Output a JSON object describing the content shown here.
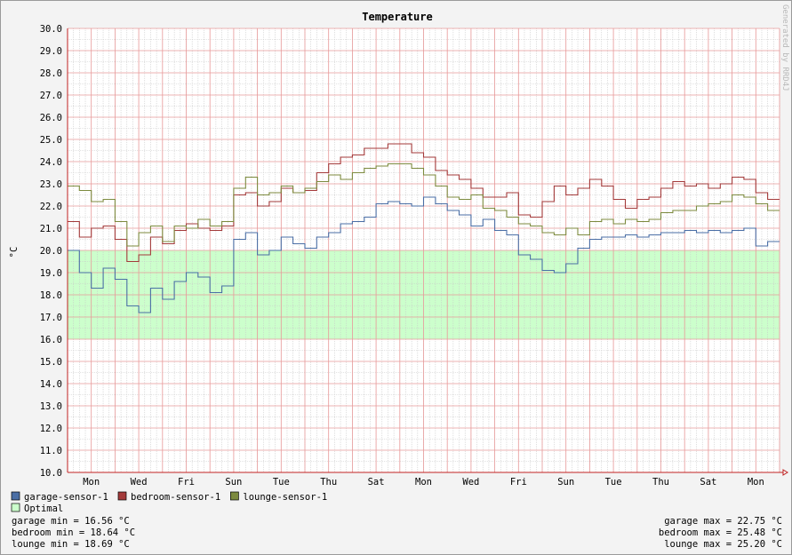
{
  "chart_data": {
    "type": "line",
    "title": "Temperature",
    "ylabel": "°C",
    "xlabel": "",
    "ylim": [
      10.0,
      30.0
    ],
    "y_ticks": [
      10.0,
      11.0,
      12.0,
      13.0,
      14.0,
      15.0,
      16.0,
      17.0,
      18.0,
      19.0,
      20.0,
      21.0,
      22.0,
      23.0,
      24.0,
      25.0,
      26.0,
      27.0,
      28.0,
      29.0,
      30.0
    ],
    "y_tick_labels": [
      "10.0",
      "11.0",
      "12.0",
      "13.0",
      "14.0",
      "15.0",
      "16.0",
      "17.0",
      "18.0",
      "19.0",
      "20.0",
      "21.0",
      "22.0",
      "23.0",
      "24.0",
      "25.0",
      "26.0",
      "27.0",
      "28.0",
      "29.0",
      "30.0"
    ],
    "xlim": [
      0,
      30
    ],
    "x_ticks": [
      1,
      3,
      5,
      7,
      9,
      11,
      13,
      15,
      17,
      19,
      21,
      23,
      25,
      27,
      29
    ],
    "x_tick_labels": [
      "Mon",
      "Wed",
      "Fri",
      "Sun",
      "Tue",
      "Thu",
      "Sat",
      "Mon",
      "Wed",
      "Fri",
      "Sun",
      "Tue",
      "Thu",
      "Sat",
      "Mon"
    ],
    "grid": true,
    "legend_placement": "bottom-left",
    "watermark": "Generated by RRD4J",
    "band": {
      "name": "Optimal",
      "from": 16.0,
      "to": 20.0,
      "color": "#ccffcc"
    },
    "series": [
      {
        "name": "garage-sensor-1",
        "color": "#4a6ea5",
        "points": [
          [
            0,
            20.0
          ],
          [
            0.5,
            19.0
          ],
          [
            1,
            18.3
          ],
          [
            1.5,
            19.2
          ],
          [
            2,
            18.7
          ],
          [
            2.5,
            17.5
          ],
          [
            3,
            17.2
          ],
          [
            3.5,
            18.3
          ],
          [
            4,
            17.8
          ],
          [
            4.5,
            18.6
          ],
          [
            5,
            19.0
          ],
          [
            5.5,
            18.8
          ],
          [
            6,
            18.1
          ],
          [
            6.5,
            18.4
          ],
          [
            7,
            20.5
          ],
          [
            7.5,
            20.8
          ],
          [
            8,
            19.8
          ],
          [
            8.5,
            20.0
          ],
          [
            9,
            20.6
          ],
          [
            9.5,
            20.3
          ],
          [
            10,
            20.1
          ],
          [
            10.5,
            20.6
          ],
          [
            11,
            20.8
          ],
          [
            11.5,
            21.2
          ],
          [
            12,
            21.3
          ],
          [
            12.5,
            21.5
          ],
          [
            13,
            22.1
          ],
          [
            13.5,
            22.2
          ],
          [
            14,
            22.1
          ],
          [
            14.5,
            22.0
          ],
          [
            15,
            22.4
          ],
          [
            15.5,
            22.1
          ],
          [
            16,
            21.8
          ],
          [
            16.5,
            21.6
          ],
          [
            17,
            21.1
          ],
          [
            17.5,
            21.4
          ],
          [
            18,
            20.9
          ],
          [
            18.5,
            20.7
          ],
          [
            19,
            19.8
          ],
          [
            19.5,
            19.6
          ],
          [
            20,
            19.1
          ],
          [
            20.5,
            19.0
          ],
          [
            21,
            19.4
          ],
          [
            21.5,
            20.1
          ],
          [
            22,
            20.5
          ],
          [
            22.5,
            20.6
          ],
          [
            23,
            20.6
          ],
          [
            23.5,
            20.7
          ],
          [
            24,
            20.6
          ],
          [
            24.5,
            20.7
          ],
          [
            25,
            20.8
          ],
          [
            25.5,
            20.8
          ],
          [
            26,
            20.9
          ],
          [
            26.5,
            20.8
          ],
          [
            27,
            20.9
          ],
          [
            27.5,
            20.8
          ],
          [
            28,
            20.9
          ],
          [
            28.5,
            21.0
          ],
          [
            29,
            20.2
          ],
          [
            29.5,
            20.4
          ]
        ]
      },
      {
        "name": "bedroom-sensor-1",
        "color": "#a33a3a",
        "points": [
          [
            0,
            21.3
          ],
          [
            0.5,
            20.6
          ],
          [
            1,
            21.0
          ],
          [
            1.5,
            21.1
          ],
          [
            2,
            20.5
          ],
          [
            2.5,
            19.5
          ],
          [
            3,
            19.8
          ],
          [
            3.5,
            20.6
          ],
          [
            4,
            20.3
          ],
          [
            4.5,
            20.9
          ],
          [
            5,
            21.2
          ],
          [
            5.5,
            21.0
          ],
          [
            6,
            20.9
          ],
          [
            6.5,
            21.1
          ],
          [
            7,
            22.5
          ],
          [
            7.5,
            22.6
          ],
          [
            8,
            22.0
          ],
          [
            8.5,
            22.2
          ],
          [
            9,
            22.8
          ],
          [
            9.5,
            22.6
          ],
          [
            10,
            22.7
          ],
          [
            10.5,
            23.5
          ],
          [
            11,
            23.9
          ],
          [
            11.5,
            24.2
          ],
          [
            12,
            24.3
          ],
          [
            12.5,
            24.6
          ],
          [
            13,
            24.6
          ],
          [
            13.5,
            24.8
          ],
          [
            14,
            24.8
          ],
          [
            14.5,
            24.4
          ],
          [
            15,
            24.2
          ],
          [
            15.5,
            23.6
          ],
          [
            16,
            23.4
          ],
          [
            16.5,
            23.2
          ],
          [
            17,
            22.8
          ],
          [
            17.5,
            22.4
          ],
          [
            18,
            22.4
          ],
          [
            18.5,
            22.6
          ],
          [
            19,
            21.6
          ],
          [
            19.5,
            21.5
          ],
          [
            20,
            22.2
          ],
          [
            20.5,
            22.9
          ],
          [
            21,
            22.5
          ],
          [
            21.5,
            22.8
          ],
          [
            22,
            23.2
          ],
          [
            22.5,
            22.9
          ],
          [
            23,
            22.3
          ],
          [
            23.5,
            21.9
          ],
          [
            24,
            22.3
          ],
          [
            24.5,
            22.4
          ],
          [
            25,
            22.8
          ],
          [
            25.5,
            23.1
          ],
          [
            26,
            22.9
          ],
          [
            26.5,
            23.0
          ],
          [
            27,
            22.8
          ],
          [
            27.5,
            23.0
          ],
          [
            28,
            23.3
          ],
          [
            28.5,
            23.2
          ],
          [
            29,
            22.6
          ],
          [
            29.5,
            22.3
          ]
        ]
      },
      {
        "name": "lounge-sensor-1",
        "color": "#7c8a3e",
        "points": [
          [
            0,
            22.9
          ],
          [
            0.5,
            22.7
          ],
          [
            1,
            22.2
          ],
          [
            1.5,
            22.3
          ],
          [
            2,
            21.3
          ],
          [
            2.5,
            20.2
          ],
          [
            3,
            20.8
          ],
          [
            3.5,
            21.1
          ],
          [
            4,
            20.4
          ],
          [
            4.5,
            21.1
          ],
          [
            5,
            21.0
          ],
          [
            5.5,
            21.4
          ],
          [
            6,
            21.1
          ],
          [
            6.5,
            21.3
          ],
          [
            7,
            22.8
          ],
          [
            7.5,
            23.3
          ],
          [
            8,
            22.5
          ],
          [
            8.5,
            22.6
          ],
          [
            9,
            22.9
          ],
          [
            9.5,
            22.6
          ],
          [
            10,
            22.8
          ],
          [
            10.5,
            23.1
          ],
          [
            11,
            23.4
          ],
          [
            11.5,
            23.2
          ],
          [
            12,
            23.5
          ],
          [
            12.5,
            23.7
          ],
          [
            13,
            23.8
          ],
          [
            13.5,
            23.9
          ],
          [
            14,
            23.9
          ],
          [
            14.5,
            23.7
          ],
          [
            15,
            23.4
          ],
          [
            15.5,
            22.9
          ],
          [
            16,
            22.4
          ],
          [
            16.5,
            22.3
          ],
          [
            17,
            22.5
          ],
          [
            17.5,
            21.9
          ],
          [
            18,
            21.8
          ],
          [
            18.5,
            21.5
          ],
          [
            19,
            21.2
          ],
          [
            19.5,
            21.1
          ],
          [
            20,
            20.8
          ],
          [
            20.5,
            20.7
          ],
          [
            21,
            21.0
          ],
          [
            21.5,
            20.7
          ],
          [
            22,
            21.3
          ],
          [
            22.5,
            21.4
          ],
          [
            23,
            21.2
          ],
          [
            23.5,
            21.4
          ],
          [
            24,
            21.3
          ],
          [
            24.5,
            21.4
          ],
          [
            25,
            21.7
          ],
          [
            25.5,
            21.8
          ],
          [
            26,
            21.8
          ],
          [
            26.5,
            22.0
          ],
          [
            27,
            22.1
          ],
          [
            27.5,
            22.2
          ],
          [
            28,
            22.5
          ],
          [
            28.5,
            22.4
          ],
          [
            29,
            22.1
          ],
          [
            29.5,
            21.8
          ]
        ]
      }
    ]
  },
  "legend": {
    "items": [
      {
        "label": "garage-sensor-1",
        "color": "#4a6ea5"
      },
      {
        "label": "bedroom-sensor-1",
        "color": "#a33a3a"
      },
      {
        "label": "lounge-sensor-1",
        "color": "#7c8a3e"
      },
      {
        "label": "Optimal",
        "color": "#ccffcc"
      }
    ]
  },
  "stats": {
    "min": [
      "garage min = 16.56  °C",
      "bedroom min = 18.64  °C",
      "lounge min = 18.69  °C"
    ],
    "max": [
      "garage max = 22.75  °C",
      "bedroom max = 25.48  °C",
      "lounge max = 25.20  °C"
    ]
  }
}
